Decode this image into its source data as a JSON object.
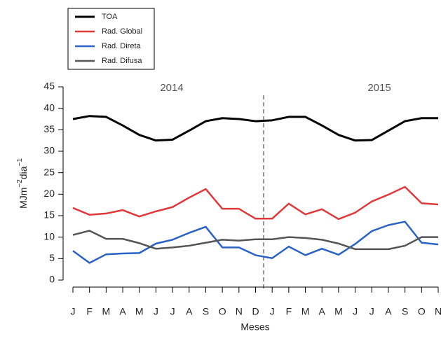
{
  "chart_data": {
    "type": "line",
    "ylabel": [
      "MJm",
      "−2",
      "dia",
      "−1"
    ],
    "xlabel": "Meses",
    "annotations": [
      "2014",
      "2015"
    ],
    "categories": [
      "J",
      "F",
      "M",
      "A",
      "M",
      "J",
      "J",
      "A",
      "S",
      "O",
      "N",
      "D",
      "J",
      "F",
      "M",
      "A",
      "M",
      "J",
      "J",
      "A",
      "S",
      "O",
      "N"
    ],
    "ylim": [
      0,
      45
    ],
    "yticks": [
      0,
      5,
      10,
      15,
      20,
      25,
      30,
      35,
      40,
      45
    ],
    "legend": "top-left",
    "series": [
      {
        "name": "TOA",
        "color": "#000000",
        "values": [
          37.5,
          38.2,
          38,
          36,
          33.8,
          32.5,
          32.7,
          34.8,
          37,
          37.7,
          37.5,
          37,
          37.2,
          38,
          38,
          36,
          33.8,
          32.5,
          32.6,
          34.8,
          37,
          37.7,
          37.7
        ]
      },
      {
        "name": "Rad. Global",
        "color": "#e0393c",
        "values": [
          16.8,
          15.2,
          15.5,
          16.3,
          14.8,
          16,
          17,
          19.2,
          21.2,
          16.6,
          16.6,
          14.3,
          14.3,
          17.8,
          15.3,
          16.5,
          14.2,
          15.7,
          18.3,
          19.9,
          21.7,
          17.9,
          17.6
        ]
      },
      {
        "name": "Rad. Direta",
        "color": "#2a62c6",
        "values": [
          6.8,
          4,
          6,
          6.2,
          6.3,
          8.5,
          9.4,
          11,
          12.4,
          7.6,
          7.6,
          5.8,
          5.1,
          7.8,
          5.8,
          7.3,
          5.9,
          8.4,
          11.4,
          12.8,
          13.6,
          8.7,
          8.3
        ]
      },
      {
        "name": "Rad. Difusa",
        "color": "#555555",
        "values": [
          10.5,
          11.5,
          9.6,
          9.6,
          8.6,
          7.3,
          7.6,
          8,
          8.7,
          9.4,
          9.2,
          9.5,
          9.5,
          10,
          9.8,
          9.4,
          8.5,
          7.2,
          7.2,
          7.2,
          8,
          10,
          10
        ]
      }
    ]
  }
}
